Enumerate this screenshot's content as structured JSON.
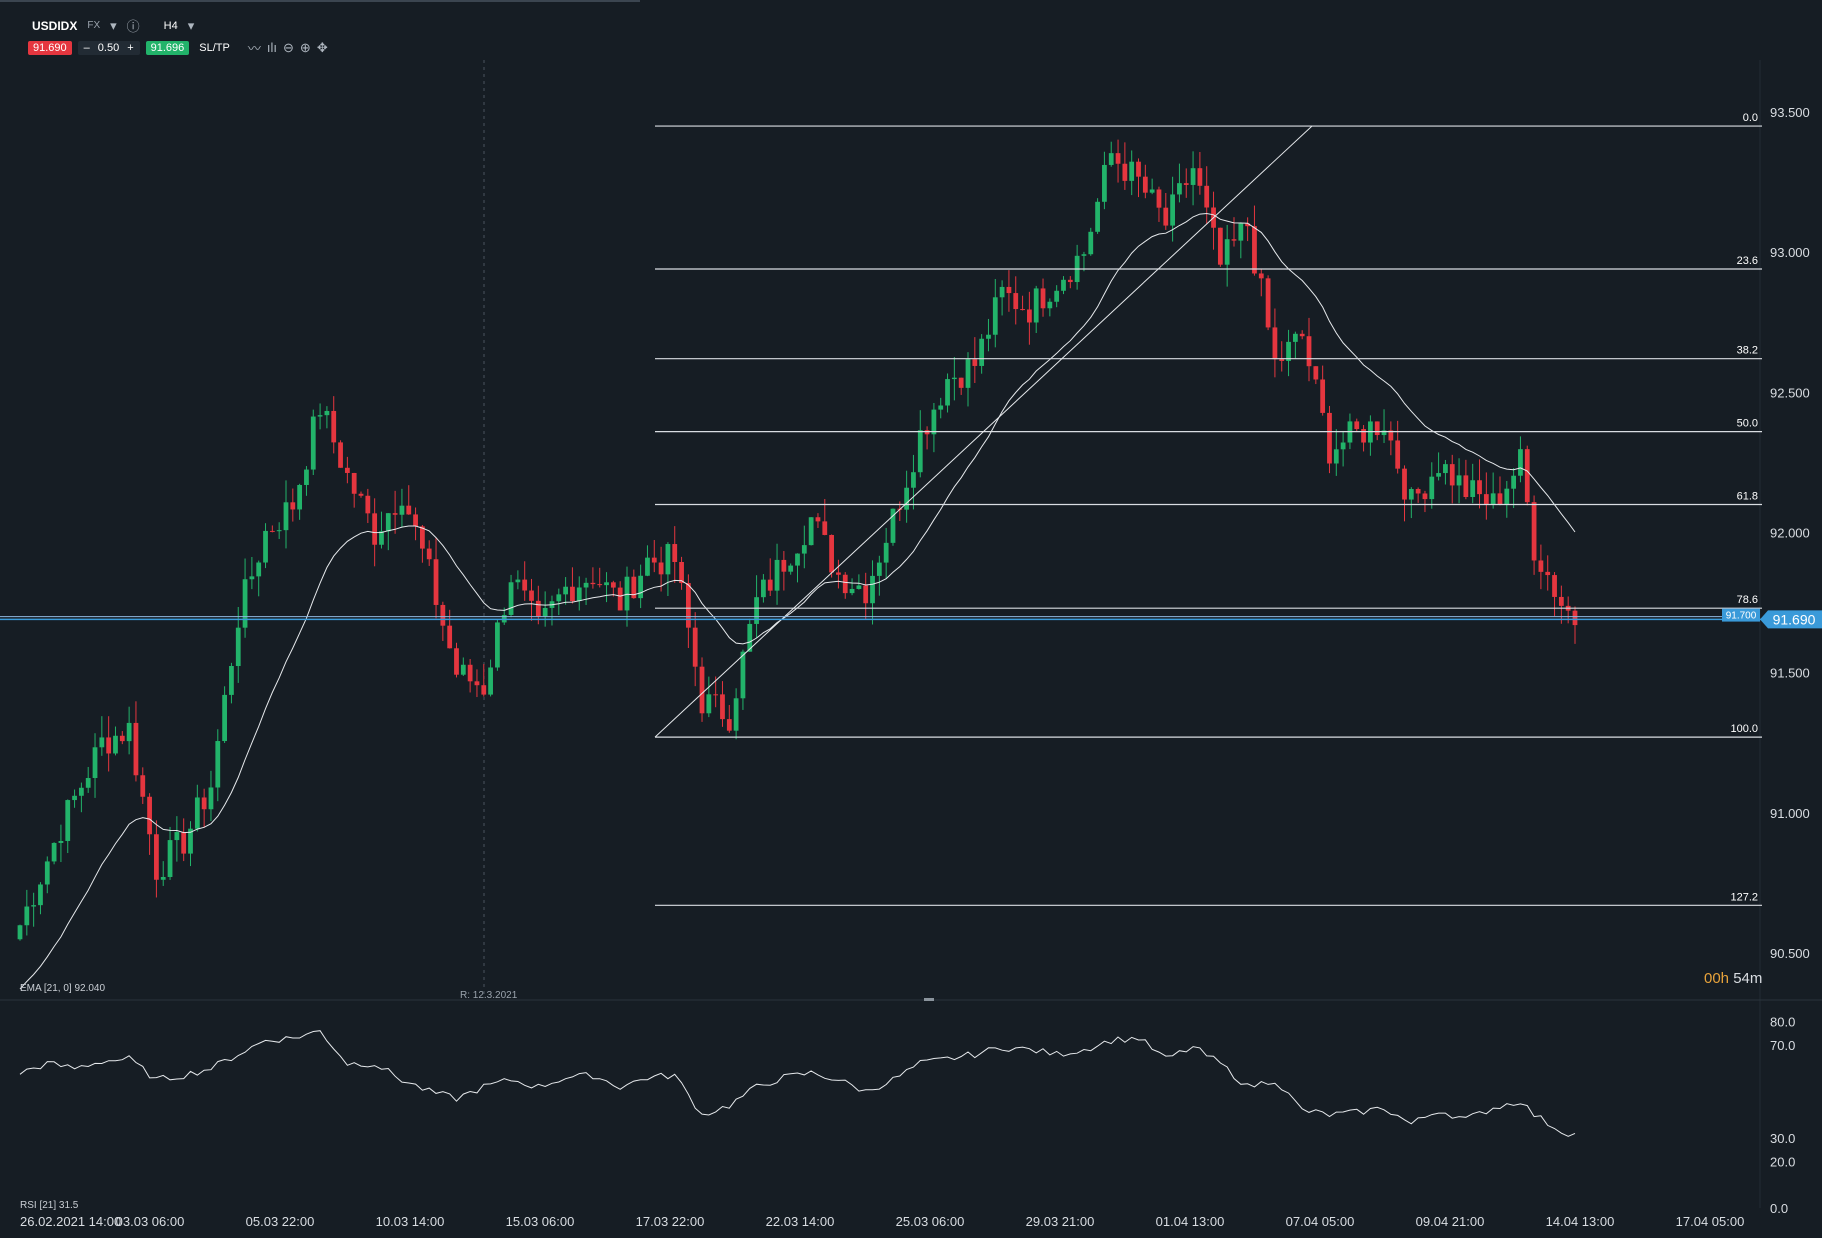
{
  "header": {
    "symbol": "USDIDX",
    "market": "FX",
    "timeframe": "H4",
    "sell_price": "91.690",
    "lot_size": "0.50",
    "buy_price": "91.696",
    "sltp_label": "SL/TP",
    "minus": "–",
    "plus": "+"
  },
  "indicators": {
    "ema_label": "EMA [21, 0] 92.040",
    "rsi_label": "RSI [21] 31.5",
    "range_label": "R: 12.3.2021"
  },
  "countdown": {
    "hours": "00h",
    "minutes": "54m"
  },
  "colors": {
    "background": "#161d24",
    "bull": "#22b36a",
    "bear": "#e5363f",
    "current_price": "#3a9ad9",
    "lines": "#d9dde2"
  },
  "chart_data": [
    {
      "type": "candlestick",
      "title": "USDIDX H4",
      "ylim": [
        90.35,
        93.65
      ],
      "y_ticks": [
        "93.500",
        "93.000",
        "92.500",
        "92.000",
        "91.500",
        "91.000",
        "90.500"
      ],
      "x_ticks": [
        "26.02.2021 14:00",
        "03.03 06:00",
        "05.03 22:00",
        "10.03 14:00",
        "15.03 06:00",
        "17.03 22:00",
        "22.03 14:00",
        "25.03 06:00",
        "29.03 21:00",
        "01.04 13:00",
        "07.04 05:00",
        "09.04 21:00",
        "14.04 13:00",
        "17.04 05:00"
      ],
      "close_path_anchors": [
        [
          0,
          90.6
        ],
        [
          6,
          90.95
        ],
        [
          12,
          91.25
        ],
        [
          16,
          91.3
        ],
        [
          20,
          90.8
        ],
        [
          24,
          90.9
        ],
        [
          28,
          91.1
        ],
        [
          32,
          91.7
        ],
        [
          36,
          92.0
        ],
        [
          40,
          92.1
        ],
        [
          44,
          92.45
        ],
        [
          48,
          92.2
        ],
        [
          52,
          92.0
        ],
        [
          56,
          92.15
        ],
        [
          60,
          91.85
        ],
        [
          64,
          91.5
        ],
        [
          68,
          91.45
        ],
        [
          72,
          91.85
        ],
        [
          76,
          91.65
        ],
        [
          80,
          91.8
        ],
        [
          84,
          91.85
        ],
        [
          88,
          91.75
        ],
        [
          92,
          91.9
        ],
        [
          96,
          91.9
        ],
        [
          100,
          91.4
        ],
        [
          104,
          91.35
        ],
        [
          108,
          91.75
        ],
        [
          112,
          91.9
        ],
        [
          116,
          92.05
        ],
        [
          120,
          91.85
        ],
        [
          124,
          91.8
        ],
        [
          128,
          92.05
        ],
        [
          132,
          92.35
        ],
        [
          136,
          92.55
        ],
        [
          140,
          92.6
        ],
        [
          144,
          92.85
        ],
        [
          148,
          92.8
        ],
        [
          152,
          92.9
        ],
        [
          156,
          93.0
        ],
        [
          160,
          93.35
        ],
        [
          164,
          93.25
        ],
        [
          168,
          93.1
        ],
        [
          172,
          93.3
        ],
        [
          176,
          92.95
        ],
        [
          180,
          93.1
        ],
        [
          184,
          92.6
        ],
        [
          188,
          92.7
        ],
        [
          192,
          92.3
        ],
        [
          196,
          92.35
        ],
        [
          200,
          92.4
        ],
        [
          204,
          92.1
        ],
        [
          208,
          92.25
        ],
        [
          212,
          92.15
        ],
        [
          216,
          92.1
        ],
        [
          220,
          92.25
        ],
        [
          222,
          91.95
        ],
        [
          226,
          91.75
        ],
        [
          228,
          91.69
        ]
      ],
      "fibonacci": {
        "high": 93.45,
        "low": 91.27,
        "levels": [
          {
            "label": "0.0",
            "price": 93.45
          },
          {
            "label": "23.6",
            "price": 92.94
          },
          {
            "label": "38.2",
            "price": 92.62
          },
          {
            "label": "50.0",
            "price": 92.36
          },
          {
            "label": "61.8",
            "price": 92.1
          },
          {
            "label": "78.6",
            "price": 91.73
          },
          {
            "label": "100.0",
            "price": 91.27
          },
          {
            "label": "127.2",
            "price": 90.67
          }
        ]
      },
      "current_price": {
        "label": "91.690",
        "price": 91.69
      },
      "secondary_price": {
        "label": "91.700",
        "price": 91.7
      }
    },
    {
      "type": "line",
      "title": "RSI [21]",
      "ylim": [
        0,
        85
      ],
      "y_ticks": [
        "80.0",
        "70.0",
        "30.0",
        "20.0",
        "0.0"
      ],
      "last_value": 31.5,
      "anchors": [
        [
          0,
          58
        ],
        [
          4,
          62
        ],
        [
          8,
          60
        ],
        [
          12,
          63
        ],
        [
          16,
          64
        ],
        [
          20,
          55
        ],
        [
          24,
          57
        ],
        [
          28,
          60
        ],
        [
          32,
          66
        ],
        [
          36,
          72
        ],
        [
          40,
          73
        ],
        [
          44,
          76
        ],
        [
          48,
          62
        ],
        [
          52,
          62
        ],
        [
          56,
          55
        ],
        [
          60,
          50
        ],
        [
          64,
          47
        ],
        [
          68,
          52
        ],
        [
          72,
          55
        ],
        [
          76,
          52
        ],
        [
          80,
          56
        ],
        [
          84,
          57
        ],
        [
          88,
          52
        ],
        [
          92,
          56
        ],
        [
          96,
          57
        ],
        [
          100,
          40
        ],
        [
          104,
          44
        ],
        [
          108,
          52
        ],
        [
          112,
          56
        ],
        [
          116,
          58
        ],
        [
          120,
          55
        ],
        [
          124,
          50
        ],
        [
          128,
          55
        ],
        [
          132,
          62
        ],
        [
          136,
          64
        ],
        [
          140,
          66
        ],
        [
          144,
          69
        ],
        [
          148,
          68
        ],
        [
          152,
          66
        ],
        [
          156,
          68
        ],
        [
          160,
          72
        ],
        [
          164,
          73
        ],
        [
          168,
          64
        ],
        [
          172,
          69
        ],
        [
          176,
          62
        ],
        [
          180,
          52
        ],
        [
          184,
          55
        ],
        [
          188,
          42
        ],
        [
          192,
          40
        ],
        [
          196,
          41
        ],
        [
          200,
          43
        ],
        [
          204,
          36
        ],
        [
          208,
          42
        ],
        [
          212,
          38
        ],
        [
          216,
          43
        ],
        [
          220,
          46
        ],
        [
          222,
          40
        ],
        [
          226,
          33
        ],
        [
          228,
          31.5
        ]
      ]
    }
  ]
}
